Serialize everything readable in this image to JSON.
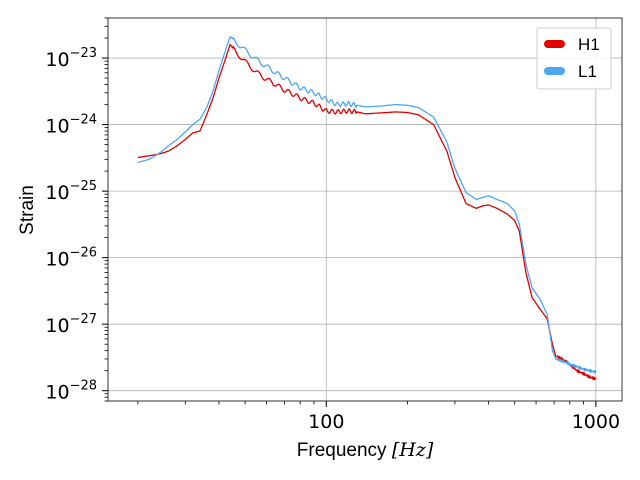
{
  "chart_data": {
    "type": "line",
    "xlabel": "Frequency",
    "xlabel_unit": "[Hz]",
    "ylabel": "Strain",
    "x_scale": "log",
    "y_scale": "log",
    "xlim": [
      15.5,
      1250
    ],
    "ylim": [
      7e-29,
      4e-23
    ],
    "x_ticks": [
      {
        "value": 100,
        "label": "100"
      },
      {
        "value": 1000,
        "label": "1000"
      }
    ],
    "y_ticks": [
      {
        "value": 1e-28,
        "base": "10",
        "exp": "−28"
      },
      {
        "value": 1e-27,
        "base": "10",
        "exp": "−27"
      },
      {
        "value": 1e-26,
        "base": "10",
        "exp": "−26"
      },
      {
        "value": 1e-25,
        "base": "10",
        "exp": "−25"
      },
      {
        "value": 1e-24,
        "base": "10",
        "exp": "−24"
      },
      {
        "value": 1e-23,
        "base": "10",
        "exp": "−23"
      }
    ],
    "grid": true,
    "legend_position": "top-right",
    "series": [
      {
        "name": "H1",
        "color": "#e00000",
        "points": [
          [
            20,
            3.2e-25
          ],
          [
            22,
            3.4e-25
          ],
          [
            24,
            3.6e-25
          ],
          [
            26,
            4e-25
          ],
          [
            28,
            4.8e-25
          ],
          [
            30,
            6e-25
          ],
          [
            32,
            7.5e-25
          ],
          [
            34,
            8e-25
          ],
          [
            36,
            1.4e-24
          ],
          [
            38,
            2.5e-24
          ],
          [
            40,
            5e-24
          ],
          [
            42,
            9e-24
          ],
          [
            44,
            1.6e-23
          ],
          [
            46,
            1.25e-23
          ],
          [
            48,
            1.05e-23
          ],
          [
            52,
            7.5e-24
          ],
          [
            56,
            5.8e-24
          ],
          [
            60,
            4.8e-24
          ],
          [
            65,
            4e-24
          ],
          [
            70,
            3.3e-24
          ],
          [
            75,
            2.9e-24
          ],
          [
            80,
            2.5e-24
          ],
          [
            90,
            2.1e-24
          ],
          [
            100,
            1.6e-24
          ],
          [
            110,
            1.55e-24
          ],
          [
            120,
            1.6e-24
          ],
          [
            130,
            1.55e-24
          ],
          [
            140,
            1.45e-24
          ],
          [
            160,
            1.5e-24
          ],
          [
            180,
            1.55e-24
          ],
          [
            200,
            1.52e-24
          ],
          [
            220,
            1.4e-24
          ],
          [
            250,
            1e-24
          ],
          [
            280,
            4e-25
          ],
          [
            300,
            1.6e-25
          ],
          [
            330,
            6.5e-26
          ],
          [
            360,
            5.5e-26
          ],
          [
            380,
            6e-26
          ],
          [
            400,
            6.2e-26
          ],
          [
            430,
            5.5e-26
          ],
          [
            470,
            4.5e-26
          ],
          [
            500,
            3.6e-26
          ],
          [
            520,
            2.5e-26
          ],
          [
            550,
            6e-27
          ],
          [
            580,
            2.5e-27
          ],
          [
            620,
            1.7e-27
          ],
          [
            660,
            1.2e-27
          ],
          [
            690,
            5e-28
          ],
          [
            710,
            3.3e-28
          ],
          [
            750,
            3e-28
          ],
          [
            800,
            2.5e-28
          ],
          [
            850,
            2e-28
          ],
          [
            900,
            1.8e-28
          ],
          [
            950,
            1.6e-28
          ],
          [
            1000,
            1.5e-28
          ]
        ]
      },
      {
        "name": "L1",
        "color": "#4da6f0",
        "points": [
          [
            20,
            2.7e-25
          ],
          [
            22,
            3e-25
          ],
          [
            24,
            3.7e-25
          ],
          [
            26,
            4.8e-25
          ],
          [
            28,
            6e-25
          ],
          [
            30,
            7.8e-25
          ],
          [
            32,
            1e-24
          ],
          [
            34,
            1.2e-24
          ],
          [
            36,
            1.8e-24
          ],
          [
            38,
            3.2e-24
          ],
          [
            40,
            6.5e-24
          ],
          [
            42,
            1.2e-23
          ],
          [
            44,
            2.1e-23
          ],
          [
            46,
            1.8e-23
          ],
          [
            48,
            1.5e-23
          ],
          [
            52,
            1.15e-23
          ],
          [
            56,
            9e-24
          ],
          [
            60,
            7.5e-24
          ],
          [
            65,
            6e-24
          ],
          [
            70,
            5e-24
          ],
          [
            75,
            4.2e-24
          ],
          [
            80,
            3.6e-24
          ],
          [
            90,
            3e-24
          ],
          [
            100,
            2.4e-24
          ],
          [
            110,
            2e-24
          ],
          [
            120,
            2.05e-24
          ],
          [
            130,
            1.95e-24
          ],
          [
            140,
            1.85e-24
          ],
          [
            160,
            1.9e-24
          ],
          [
            180,
            2e-24
          ],
          [
            200,
            1.95e-24
          ],
          [
            220,
            1.8e-24
          ],
          [
            250,
            1.3e-24
          ],
          [
            280,
            5.5e-25
          ],
          [
            300,
            2.2e-25
          ],
          [
            330,
            9.5e-26
          ],
          [
            360,
            7.5e-26
          ],
          [
            380,
            8e-26
          ],
          [
            400,
            8.5e-26
          ],
          [
            430,
            7.5e-26
          ],
          [
            470,
            6.5e-26
          ],
          [
            500,
            5e-26
          ],
          [
            520,
            3.2e-26
          ],
          [
            550,
            8e-27
          ],
          [
            580,
            3.5e-27
          ],
          [
            620,
            2.4e-27
          ],
          [
            660,
            1.4e-27
          ],
          [
            690,
            4e-28
          ],
          [
            710,
            3e-28
          ],
          [
            750,
            2.8e-28
          ],
          [
            800,
            2.5e-28
          ],
          [
            850,
            2.3e-28
          ],
          [
            900,
            2.1e-28
          ],
          [
            950,
            2e-28
          ],
          [
            1000,
            1.9e-28
          ]
        ]
      }
    ]
  }
}
